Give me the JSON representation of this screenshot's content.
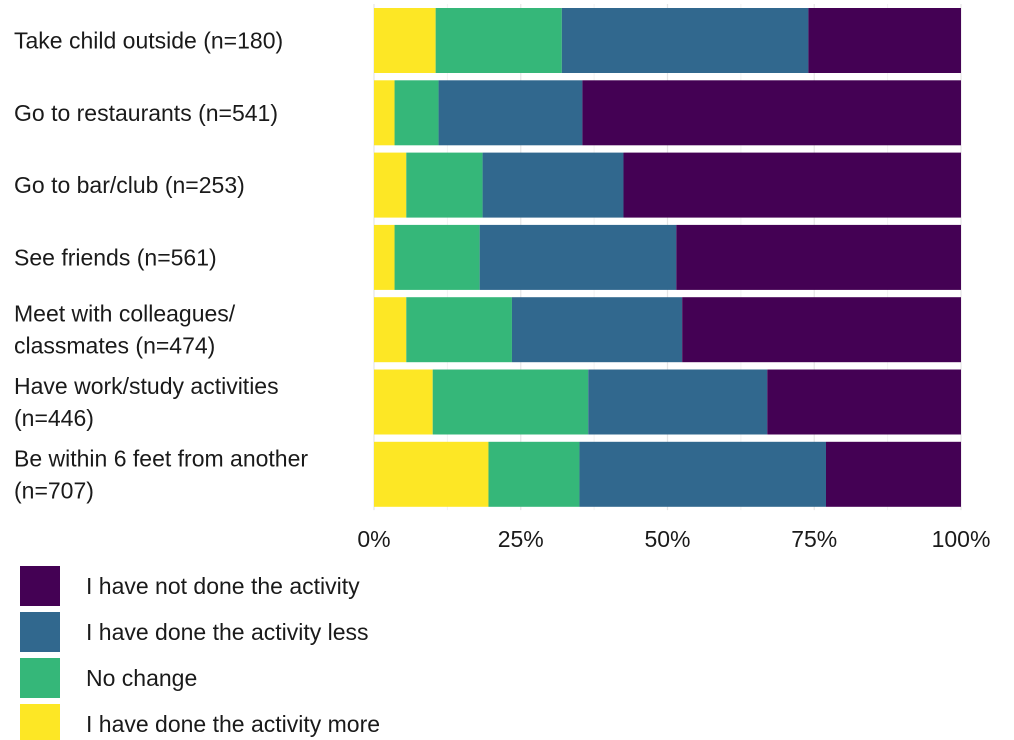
{
  "chart_data": {
    "type": "bar",
    "orientation": "horizontal",
    "stacked": true,
    "normalized": true,
    "title": "",
    "xlabel": "",
    "ylabel": "",
    "xlim": [
      0,
      100
    ],
    "x_ticks": [
      "0%",
      "25%",
      "50%",
      "75%",
      "100%"
    ],
    "grid": true,
    "legend_position": "bottom-left",
    "categories": [
      [
        "Take child outside (n=180)"
      ],
      [
        "Go to restaurants (n=541)"
      ],
      [
        "Go to bar/club (n=253)"
      ],
      [
        "See friends (n=561)"
      ],
      [
        "Meet with colleagues/",
        "classmates (n=474)"
      ],
      [
        "Have work/study activities",
        "(n=446)"
      ],
      [
        "Be within 6 feet from another",
        "(n=707)"
      ]
    ],
    "series": [
      {
        "name": "I have done the activity more",
        "color": "#fde725",
        "values": [
          10.5,
          3.5,
          5.5,
          3.5,
          5.5,
          10,
          19.5
        ]
      },
      {
        "name": "No change",
        "color": "#35b779",
        "values": [
          21.5,
          7.5,
          13,
          14.5,
          18,
          26.5,
          15.5
        ]
      },
      {
        "name": "I have done the activity less",
        "color": "#31688e",
        "values": [
          42,
          24.5,
          24,
          33.5,
          29,
          30.5,
          42
        ]
      },
      {
        "name": "I have not done the activity",
        "color": "#440154",
        "values": [
          26,
          64.5,
          57.5,
          48.5,
          47.5,
          33,
          23
        ]
      }
    ],
    "legend_order": [
      "I have not done the activity",
      "I have done the activity less",
      "No change",
      "I have done the activity more"
    ]
  }
}
